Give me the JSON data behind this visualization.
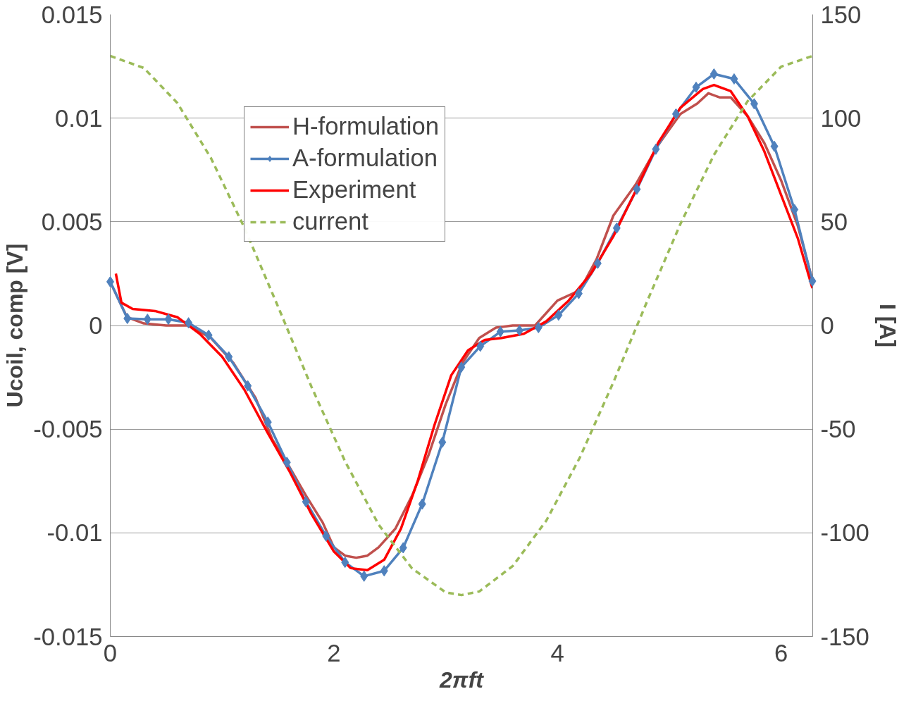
{
  "chart_data": {
    "type": "line",
    "xlabel": "2πft",
    "ylabel": "Ucoil, comp [V]",
    "y2label": "I [A]",
    "xlim": [
      0,
      6.283
    ],
    "xticks": [
      0,
      2,
      4,
      6
    ],
    "ylim": [
      -0.015,
      0.015
    ],
    "yticks": [
      -0.015,
      -0.01,
      -0.005,
      0,
      0.005,
      0.01,
      0.015
    ],
    "y2lim": [
      -150,
      150
    ],
    "y2ticks": [
      -150,
      -100,
      -50,
      0,
      50,
      100,
      150
    ],
    "grid": "y",
    "legend": "top left",
    "series": [
      {
        "name": "H-formulation",
        "color": "#c0504d",
        "marker": "none",
        "line_style": "solid",
        "x": [
          0,
          0.15,
          0.3,
          0.5,
          0.7,
          0.9,
          1.1,
          1.3,
          1.45,
          1.6,
          1.75,
          1.9,
          2.0,
          2.1,
          2.2,
          2.3,
          2.4,
          2.55,
          2.7,
          2.85,
          3.0,
          3.15,
          3.3,
          3.45,
          3.6,
          3.8,
          4.0,
          4.2,
          4.35,
          4.5,
          4.7,
          4.9,
          5.1,
          5.25,
          5.35,
          5.45,
          5.55,
          5.7,
          5.85,
          6.0,
          6.15,
          6.28
        ],
        "values": [
          0.0021,
          0.0004,
          0.0001,
          0.0,
          0.0,
          -0.0006,
          -0.0018,
          -0.0035,
          -0.0055,
          -0.0068,
          -0.0082,
          -0.0095,
          -0.0107,
          -0.0111,
          -0.0112,
          -0.0111,
          -0.0107,
          -0.0098,
          -0.0082,
          -0.0062,
          -0.0038,
          -0.0018,
          -0.0006,
          -0.0001,
          0.0,
          0.0,
          0.0012,
          0.0017,
          0.0032,
          0.0053,
          0.0068,
          0.0087,
          0.0102,
          0.0107,
          0.0112,
          0.011,
          0.011,
          0.0101,
          0.0088,
          0.007,
          0.0048,
          0.0022
        ]
      },
      {
        "name": "A-formulation",
        "color": "#4f81bd",
        "marker": "diamond",
        "line_style": "solid",
        "x": [
          0,
          0.153,
          0.333,
          0.52,
          0.7,
          0.88,
          1.06,
          1.23,
          1.41,
          1.58,
          1.75,
          1.93,
          2.1,
          2.27,
          2.45,
          2.62,
          2.79,
          2.97,
          3.14,
          3.31,
          3.49,
          3.66,
          3.83,
          4.01,
          4.19,
          4.36,
          4.53,
          4.71,
          4.88,
          5.06,
          5.24,
          5.4,
          5.58,
          5.76,
          5.94,
          6.12,
          6.28
        ],
        "values": [
          0.00211,
          0.00034,
          0.0003,
          0.0003,
          0.00013,
          -0.00047,
          -0.00151,
          -0.00291,
          -0.00466,
          -0.0066,
          -0.0085,
          -0.01015,
          -0.01142,
          -0.01209,
          -0.01183,
          -0.01072,
          -0.00861,
          -0.00563,
          -0.00201,
          -0.001,
          -0.0003,
          -0.00024,
          -0.0001,
          0.0005,
          0.00154,
          0.003,
          0.0047,
          0.00657,
          0.0085,
          0.0102,
          0.01149,
          0.01213,
          0.01189,
          0.01069,
          0.00864,
          0.00559,
          0.00214
        ]
      },
      {
        "name": "Experiment",
        "color": "#ff0000",
        "marker": "none",
        "line_style": "solid",
        "x": [
          0.05,
          0.1,
          0.2,
          0.4,
          0.6,
          0.8,
          1.0,
          1.2,
          1.4,
          1.6,
          1.8,
          2.0,
          2.15,
          2.3,
          2.45,
          2.6,
          2.75,
          2.9,
          3.05,
          3.2,
          3.35,
          3.5,
          3.7,
          3.9,
          4.1,
          4.3,
          4.5,
          4.7,
          4.9,
          5.1,
          5.3,
          5.4,
          5.55,
          5.7,
          5.85,
          6.0,
          6.15,
          6.28
        ],
        "values": [
          0.0025,
          0.0011,
          0.0008,
          0.0007,
          0.0004,
          -0.0004,
          -0.0015,
          -0.0031,
          -0.0051,
          -0.007,
          -0.0091,
          -0.0109,
          -0.0117,
          -0.0118,
          -0.0113,
          -0.0098,
          -0.0075,
          -0.0048,
          -0.0024,
          -0.0012,
          -0.0007,
          -0.0006,
          -0.0004,
          0.0002,
          0.0012,
          0.0025,
          0.0043,
          0.0065,
          0.0088,
          0.0105,
          0.0114,
          0.0116,
          0.0113,
          0.0101,
          0.0084,
          0.0063,
          0.0042,
          0.0018
        ]
      },
      {
        "name": "current",
        "color": "#9bbb59",
        "marker": "none",
        "line_style": "dashed",
        "axis": "y2",
        "x": [
          0,
          0.3,
          0.6,
          0.9,
          1.2,
          1.5,
          1.8,
          2.1,
          2.4,
          2.7,
          3.0,
          3.1416,
          3.3,
          3.6,
          3.9,
          4.2,
          4.5,
          4.8,
          5.1,
          5.4,
          5.7,
          6.0,
          6.283
        ],
        "values": [
          130,
          124.2,
          107.3,
          80.8,
          47.1,
          9.2,
          -29.6,
          -65.5,
          -96.0,
          -117.2,
          -128.7,
          -130,
          -128.3,
          -116.0,
          -94.1,
          -63.7,
          -27.4,
          11.4,
          49.0,
          82.3,
          108.1,
          124.8,
          130
        ]
      }
    ]
  }
}
